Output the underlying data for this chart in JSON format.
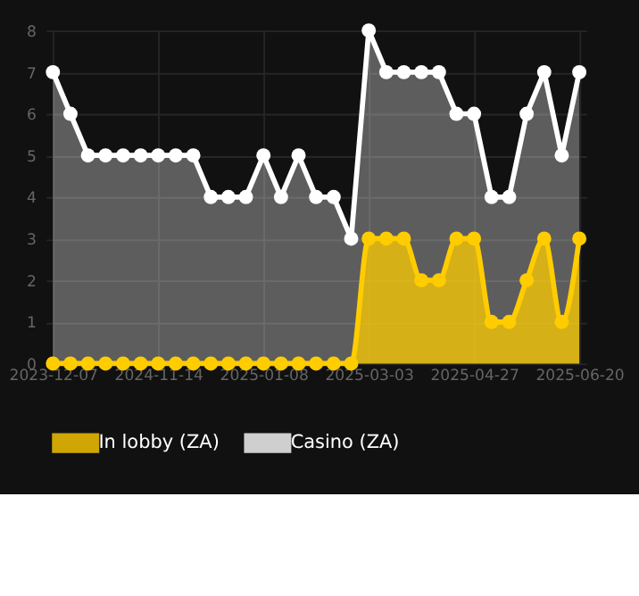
{
  "chart_data": {
    "type": "area",
    "categories": [
      "2023-12-07",
      null,
      null,
      null,
      null,
      null,
      "2024-11-14",
      null,
      null,
      null,
      null,
      null,
      "2025-01-08",
      null,
      null,
      null,
      null,
      null,
      "2025-03-03",
      null,
      null,
      null,
      null,
      null,
      "2025-04-27",
      null,
      null,
      null,
      null,
      null,
      "2025-06-20"
    ],
    "series": [
      {
        "name": "In lobby (ZA)",
        "color": "#ffcc00",
        "values": [
          0,
          0,
          0,
          0,
          0,
          0,
          0,
          0,
          0,
          0,
          0,
          0,
          0,
          0,
          0,
          0,
          0,
          0,
          3,
          3,
          3,
          2,
          2,
          3,
          3,
          1,
          1,
          2,
          3,
          1,
          3
        ]
      },
      {
        "name": "Casino (ZA)",
        "color": "#ffffff",
        "values": [
          7,
          6,
          5,
          5,
          5,
          5,
          5,
          5,
          5,
          4,
          4,
          4,
          5,
          4,
          5,
          4,
          4,
          3,
          8,
          7,
          7,
          7,
          7,
          6,
          6,
          4,
          4,
          6,
          7,
          5,
          7
        ]
      }
    ],
    "ylim": [
      0,
      8
    ],
    "yticks": [
      0,
      1,
      2,
      3,
      4,
      5,
      6,
      7,
      8
    ],
    "grid": true,
    "legend": "bottom",
    "marker": "circle"
  }
}
